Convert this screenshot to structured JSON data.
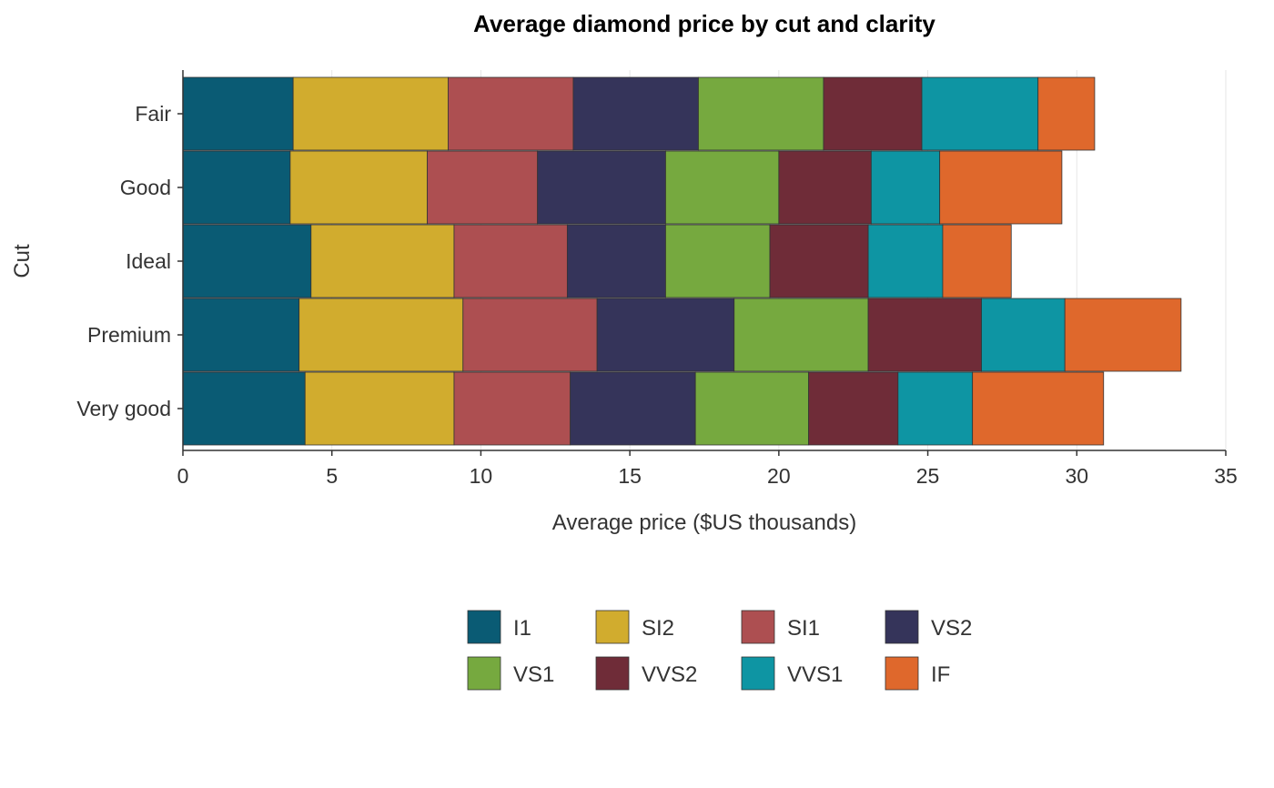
{
  "chart_data": {
    "type": "bar",
    "orientation": "horizontal",
    "stacked": true,
    "title": "Average diamond price by cut and clarity",
    "xlabel": "Average price ($US thousands)",
    "ylabel": "Cut",
    "xlim": [
      0,
      35
    ],
    "xticks": [
      0,
      5,
      10,
      15,
      20,
      25,
      30,
      35
    ],
    "categories": [
      "Fair",
      "Good",
      "Ideal",
      "Premium",
      "Very good"
    ],
    "series": [
      {
        "name": "I1",
        "color": "#0a5b74",
        "values": [
          3.7,
          3.6,
          4.3,
          3.9,
          4.1
        ]
      },
      {
        "name": "SI2",
        "color": "#d1ac2e",
        "values": [
          5.2,
          4.6,
          4.8,
          5.5,
          5.0
        ]
      },
      {
        "name": "SI1",
        "color": "#ad4f51",
        "values": [
          4.2,
          3.7,
          3.8,
          4.5,
          3.9
        ]
      },
      {
        "name": "VS2",
        "color": "#35345a",
        "values": [
          4.2,
          4.3,
          3.3,
          4.6,
          4.2
        ]
      },
      {
        "name": "VS1",
        "color": "#76a93f",
        "values": [
          4.2,
          3.8,
          3.5,
          4.5,
          3.8
        ]
      },
      {
        "name": "VVS2",
        "color": "#6f2c38",
        "values": [
          3.3,
          3.1,
          3.3,
          3.8,
          3.0
        ]
      },
      {
        "name": "VVS1",
        "color": "#0e95a3",
        "values": [
          3.9,
          2.3,
          2.5,
          2.8,
          2.5
        ]
      },
      {
        "name": "IF",
        "color": "#df682c",
        "values": [
          1.9,
          4.1,
          2.3,
          3.9,
          4.4
        ]
      }
    ],
    "grid": true,
    "legend_position": "bottom"
  }
}
